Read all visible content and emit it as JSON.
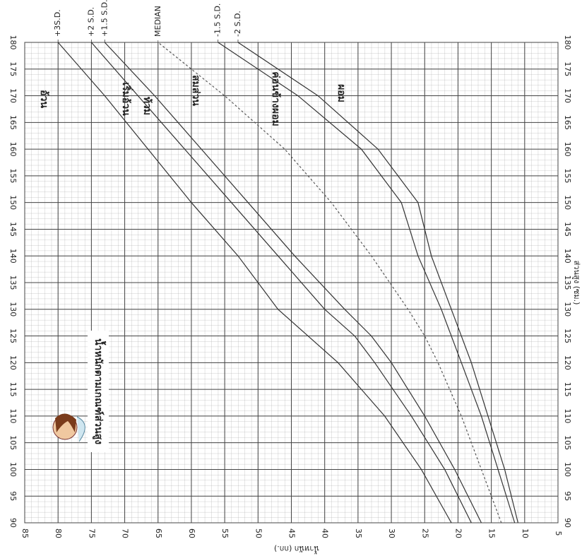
{
  "chart_data": {
    "type": "line",
    "title": "น้ำหนักตามเกณฑ์ส่วนสูง",
    "x_label": "ส่วนสูง (ซม.)",
    "y_label": "น้ำหนัก (กก.)",
    "x": [
      90,
      100,
      110,
      120,
      125,
      130,
      140,
      150,
      160,
      170,
      180
    ],
    "series": [
      {
        "name": "+3S.D.",
        "color": "#333333",
        "dashed": false,
        "values": [
          21,
          25.5,
          31,
          38,
          42.5,
          47,
          53,
          60,
          66.5,
          73,
          80
        ]
      },
      {
        "name": "+2 S.D.",
        "color": "#333333",
        "dashed": false,
        "values": [
          18,
          22,
          27,
          32.5,
          35.5,
          40,
          47,
          54,
          61,
          68,
          75
        ]
      },
      {
        "name": "+1.5 S.D.",
        "color": "#333333",
        "dashed": false,
        "values": [
          16.5,
          20.5,
          25,
          30,
          33,
          37,
          44.5,
          51.5,
          58.5,
          65.5,
          73
        ]
      },
      {
        "name": "MEDIAN",
        "color": "#555555",
        "dashed": true,
        "values": [
          13.5,
          16.5,
          19.5,
          23,
          25,
          27.5,
          33,
          39,
          46,
          55,
          65
        ]
      },
      {
        "name": "-1.5 S.D.",
        "color": "#333333",
        "dashed": false,
        "values": [
          11.5,
          14,
          16.5,
          19.5,
          21,
          22.5,
          26,
          28.5,
          34.5,
          44,
          56
        ]
      },
      {
        "name": "-2 S.D.",
        "color": "#333333",
        "dashed": false,
        "values": [
          11,
          13,
          15.5,
          18,
          19.5,
          21,
          24,
          26,
          32,
          41,
          53
        ]
      }
    ],
    "annotations": [
      "อ้วน",
      "เริ่มอ้วน",
      "ท้วม",
      "สมส่วน",
      "ค่อนข้างผอม",
      "ผอม"
    ],
    "xlim": [
      90,
      180
    ],
    "xticks": [
      90,
      95,
      100,
      105,
      110,
      115,
      120,
      125,
      130,
      135,
      140,
      145,
      150,
      155,
      160,
      165,
      170,
      175,
      180
    ],
    "ylim": [
      85,
      5
    ],
    "yticks": [
      85,
      80,
      75,
      70,
      65,
      60,
      55,
      50,
      45,
      40,
      35,
      30,
      25,
      20,
      15,
      10,
      5
    ],
    "grid": true
  }
}
